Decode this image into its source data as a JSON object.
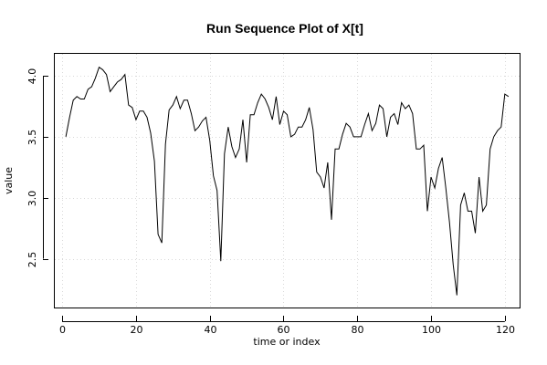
{
  "chart_data": {
    "type": "line",
    "title": "Run Sequence Plot of X[t]",
    "xlabel": "time or index",
    "ylabel": "value",
    "xlim": [
      -2.0,
      124.0
    ],
    "ylim": [
      2.1,
      4.18
    ],
    "grid": true,
    "x_ticks": [
      0,
      20,
      40,
      60,
      80,
      100,
      120
    ],
    "x_tick_labels": [
      "0",
      "20",
      "40",
      "60",
      "80",
      "100",
      "120"
    ],
    "y_ticks": [
      2.5,
      3.0,
      3.5,
      4.0
    ],
    "y_tick_labels": [
      "2.5",
      "3.0",
      "3.5",
      "4.0"
    ],
    "series": [
      {
        "values": [
          [
            1,
            3.5
          ],
          [
            2,
            3.66
          ],
          [
            3,
            3.8
          ],
          [
            4,
            3.83
          ],
          [
            5,
            3.81
          ],
          [
            6,
            3.81
          ],
          [
            7,
            3.89
          ],
          [
            8,
            3.91
          ],
          [
            9,
            3.98
          ],
          [
            10,
            4.07
          ],
          [
            11,
            4.05
          ],
          [
            12,
            4.01
          ],
          [
            13,
            3.87
          ],
          [
            14,
            3.91
          ],
          [
            15,
            3.95
          ],
          [
            16,
            3.97
          ],
          [
            17,
            4.01
          ],
          [
            18,
            3.76
          ],
          [
            19,
            3.74
          ],
          [
            20,
            3.64
          ],
          [
            21,
            3.71
          ],
          [
            22,
            3.71
          ],
          [
            23,
            3.66
          ],
          [
            24,
            3.53
          ],
          [
            25,
            3.3
          ],
          [
            26,
            2.7
          ],
          [
            27,
            2.63
          ],
          [
            28,
            3.44
          ],
          [
            29,
            3.72
          ],
          [
            30,
            3.76
          ],
          [
            31,
            3.83
          ],
          [
            32,
            3.73
          ],
          [
            33,
            3.8
          ],
          [
            34,
            3.8
          ],
          [
            35,
            3.69
          ],
          [
            36,
            3.55
          ],
          [
            37,
            3.58
          ],
          [
            38,
            3.63
          ],
          [
            39,
            3.66
          ],
          [
            40,
            3.47
          ],
          [
            41,
            3.18
          ],
          [
            42,
            3.06
          ],
          [
            43,
            2.48
          ],
          [
            44,
            3.36
          ],
          [
            45,
            3.58
          ],
          [
            46,
            3.42
          ],
          [
            47,
            3.33
          ],
          [
            48,
            3.4
          ],
          [
            49,
            3.64
          ],
          [
            50,
            3.29
          ],
          [
            51,
            3.68
          ],
          [
            52,
            3.68
          ],
          [
            53,
            3.78
          ],
          [
            54,
            3.85
          ],
          [
            55,
            3.81
          ],
          [
            56,
            3.74
          ],
          [
            57,
            3.64
          ],
          [
            58,
            3.83
          ],
          [
            59,
            3.6
          ],
          [
            60,
            3.71
          ],
          [
            61,
            3.68
          ],
          [
            62,
            3.5
          ],
          [
            63,
            3.52
          ],
          [
            64,
            3.58
          ],
          [
            65,
            3.58
          ],
          [
            66,
            3.64
          ],
          [
            67,
            3.74
          ],
          [
            68,
            3.56
          ],
          [
            69,
            3.21
          ],
          [
            70,
            3.17
          ],
          [
            71,
            3.08
          ],
          [
            72,
            3.29
          ],
          [
            73,
            2.82
          ],
          [
            74,
            3.4
          ],
          [
            75,
            3.4
          ],
          [
            76,
            3.52
          ],
          [
            77,
            3.61
          ],
          [
            78,
            3.58
          ],
          [
            79,
            3.5
          ],
          [
            80,
            3.5
          ],
          [
            81,
            3.5
          ],
          [
            82,
            3.6
          ],
          [
            83,
            3.69
          ],
          [
            84,
            3.55
          ],
          [
            85,
            3.61
          ],
          [
            86,
            3.76
          ],
          [
            87,
            3.73
          ],
          [
            88,
            3.5
          ],
          [
            89,
            3.66
          ],
          [
            90,
            3.69
          ],
          [
            91,
            3.6
          ],
          [
            92,
            3.78
          ],
          [
            93,
            3.73
          ],
          [
            94,
            3.76
          ],
          [
            95,
            3.69
          ],
          [
            96,
            3.4
          ],
          [
            97,
            3.4
          ],
          [
            98,
            3.43
          ],
          [
            99,
            2.89
          ],
          [
            100,
            3.17
          ],
          [
            101,
            3.08
          ],
          [
            102,
            3.24
          ],
          [
            103,
            3.33
          ],
          [
            104,
            3.08
          ],
          [
            105,
            2.8
          ],
          [
            106,
            2.45
          ],
          [
            107,
            2.2
          ],
          [
            108,
            2.94
          ],
          [
            109,
            3.04
          ],
          [
            110,
            2.89
          ],
          [
            111,
            2.89
          ],
          [
            112,
            2.71
          ],
          [
            113,
            3.17
          ],
          [
            114,
            2.89
          ],
          [
            115,
            2.94
          ],
          [
            116,
            3.4
          ],
          [
            117,
            3.5
          ],
          [
            118,
            3.55
          ],
          [
            119,
            3.58
          ],
          [
            120,
            3.85
          ],
          [
            121,
            3.83
          ]
        ]
      }
    ]
  }
}
